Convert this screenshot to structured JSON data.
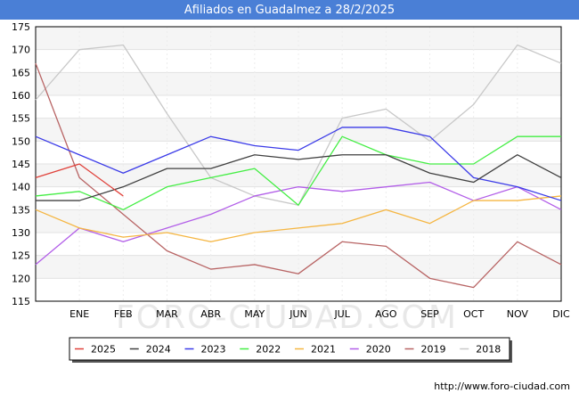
{
  "title": "Afiliados en Guadalmez a 28/2/2025",
  "footer_url": "http://www.foro-ciudad.com",
  "watermark": "FORO-CIUDAD.COM",
  "chart_data": {
    "type": "line",
    "title": "Afiliados en Guadalmez a 28/2/2025",
    "categories": [
      "",
      "ENE",
      "FEB",
      "MAR",
      "ABR",
      "MAY",
      "JUN",
      "JUL",
      "AGO",
      "SEP",
      "OCT",
      "NOV",
      "DIC"
    ],
    "ylim": [
      115,
      175
    ],
    "yticks": [
      115,
      120,
      125,
      130,
      135,
      140,
      145,
      150,
      155,
      160,
      165,
      170,
      175
    ],
    "grid": true,
    "legend_position": "bottom",
    "series": [
      {
        "name": "2025",
        "color": "#e0413a",
        "values": [
          142,
          145,
          138,
          null,
          null,
          null,
          null,
          null,
          null,
          null,
          null,
          null,
          null
        ]
      },
      {
        "name": "2024",
        "color": "#404040",
        "values": [
          137,
          137,
          140,
          144,
          144,
          147,
          146,
          147,
          147,
          143,
          141,
          147,
          142
        ]
      },
      {
        "name": "2023",
        "color": "#3b3be8",
        "values": [
          151,
          147,
          143,
          147,
          151,
          149,
          148,
          153,
          153,
          151,
          142,
          140,
          137
        ]
      },
      {
        "name": "2022",
        "color": "#44ee44",
        "values": [
          138,
          139,
          135,
          140,
          142,
          144,
          136,
          151,
          147,
          145,
          145,
          151,
          151
        ]
      },
      {
        "name": "2021",
        "color": "#f5b642",
        "values": [
          135,
          131,
          129,
          130,
          128,
          130,
          131,
          132,
          135,
          132,
          137,
          137,
          138
        ]
      },
      {
        "name": "2020",
        "color": "#b25ee8",
        "values": [
          123,
          131,
          128,
          131,
          134,
          138,
          140,
          139,
          140,
          141,
          137,
          140,
          135
        ]
      },
      {
        "name": "2019",
        "color": "#b86464",
        "values": [
          167,
          142,
          134,
          126,
          122,
          123,
          121,
          128,
          127,
          120,
          118,
          128,
          123
        ]
      },
      {
        "name": "2018",
        "color": "#c8c8c8",
        "values": [
          159,
          170,
          171,
          156,
          142,
          138,
          136,
          155,
          157,
          150,
          158,
          171,
          167
        ]
      }
    ]
  }
}
